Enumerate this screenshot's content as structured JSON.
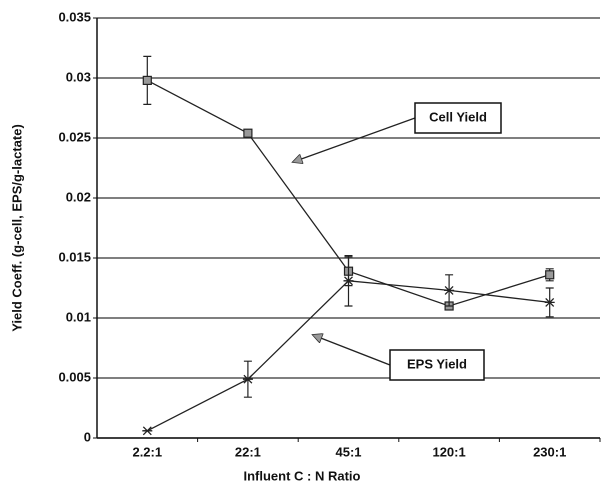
{
  "chart_data": {
    "type": "line",
    "x_label": "Influent C : N Ratio",
    "y_label": "Yield Coeff. (g-cell, EPS/g-lactate)",
    "categories": [
      "2.2:1",
      "22:1",
      "45:1",
      "120:1",
      "230:1"
    ],
    "series": [
      {
        "name": "Cell Yield",
        "color": "#222222",
        "marker": "square",
        "values": [
          0.0298,
          0.0254,
          0.0139,
          0.011,
          0.0136
        ],
        "errors": [
          0.002,
          0,
          0.0012,
          0.0003,
          0.0005
        ]
      },
      {
        "name": "EPS Yield",
        "color": "#222222",
        "marker": "x",
        "values": [
          0.0006,
          0.0049,
          0.0131,
          0.0123,
          0.0113
        ],
        "errors": [
          0,
          0.0015,
          0.0021,
          0.0013,
          0.0012
        ]
      }
    ],
    "ylim": [
      0,
      0.035
    ],
    "yticks": [
      0,
      0.005,
      0.01,
      0.015,
      0.02,
      0.025,
      0.03,
      0.035
    ],
    "grid": true
  }
}
